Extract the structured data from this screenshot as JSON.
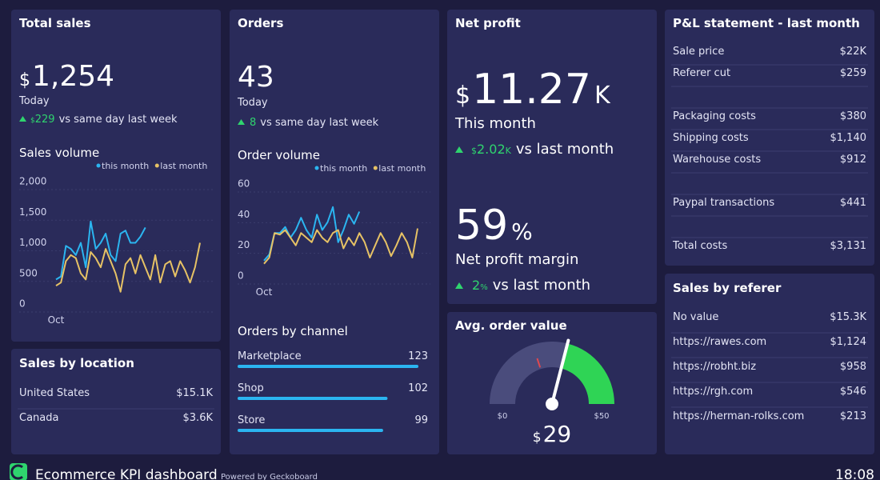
{
  "total_sales": {
    "title": "Total sales",
    "currency": "$",
    "value": "1,254",
    "period": "Today",
    "delta_currency": "$",
    "delta": "229",
    "delta_text": "vs same day last week",
    "chart": {
      "type": "line",
      "title": "Sales volume",
      "categories": [
        "Oct",
        null,
        null,
        null,
        null,
        null,
        null,
        null,
        null,
        null,
        null,
        null,
        null,
        null,
        null,
        null,
        null,
        null,
        null,
        null,
        null,
        null,
        null,
        null,
        null,
        null,
        null,
        null,
        null,
        null
      ],
      "series": [
        {
          "name": "this month",
          "color": "#2bb5f0",
          "values": [
            400,
            450,
            950,
            900,
            800,
            1000,
            600,
            1350,
            900,
            1000,
            1150,
            800,
            700,
            1150,
            1200,
            1000,
            1000,
            1100,
            1250,
            null,
            null,
            null,
            null,
            null,
            null,
            null,
            null,
            null,
            null,
            null
          ]
        },
        {
          "name": "last month",
          "color": "#e6c265",
          "values": [
            300,
            350,
            700,
            800,
            750,
            500,
            400,
            850,
            750,
            600,
            900,
            700,
            500,
            200,
            650,
            750,
            500,
            800,
            600,
            400,
            800,
            350,
            650,
            700,
            450,
            700,
            550,
            350,
            600,
            1000
          ]
        }
      ],
      "ylim": [
        0,
        2000
      ],
      "yticks": [
        0,
        500,
        {
          "value": 1000,
          "label": "1,000"
        },
        {
          "value": 1500,
          "label": "1,500"
        },
        {
          "value": 2000,
          "label": "2,000"
        }
      ],
      "grid": true
    }
  },
  "sales_by_location": {
    "title": "Sales by location",
    "rows": [
      [
        "United States",
        "$15.1K"
      ],
      [
        "Canada",
        "$3.6K"
      ]
    ]
  },
  "orders": {
    "title": "Orders",
    "value": "43",
    "period": "Today",
    "delta": "8",
    "delta_text": "vs same day last week",
    "chart": {
      "type": "line",
      "title": "Order volume",
      "categories": [
        "Oct",
        null,
        null,
        null,
        null,
        null,
        null,
        null,
        null,
        null,
        null,
        null,
        null,
        null,
        null,
        null,
        null,
        null,
        null,
        null,
        null,
        null,
        null,
        null,
        null,
        null,
        null,
        null,
        null,
        null
      ],
      "series": [
        {
          "name": "this month",
          "color": "#2bb5f0",
          "values": [
            10,
            14,
            28,
            28,
            32,
            25,
            30,
            38,
            30,
            25,
            40,
            30,
            35,
            45,
            22,
            30,
            40,
            34,
            42,
            null,
            null,
            null,
            null,
            null,
            null,
            null,
            null,
            null,
            null,
            null
          ]
        },
        {
          "name": "last month",
          "color": "#e6c265",
          "values": [
            8,
            12,
            28,
            27,
            30,
            25,
            20,
            28,
            25,
            22,
            30,
            25,
            22,
            28,
            30,
            18,
            25,
            20,
            28,
            22,
            12,
            20,
            28,
            22,
            13,
            20,
            28,
            22,
            12,
            31
          ]
        }
      ],
      "ylim": [
        0,
        60
      ],
      "yticks": [
        0,
        20,
        40,
        60
      ],
      "grid": true
    },
    "channels": {
      "type": "bar",
      "title": "Orders by channel",
      "categories": [
        "Marketplace",
        "Shop",
        "Store"
      ],
      "values": [
        123,
        102,
        99
      ],
      "color": "#2bb5f0"
    }
  },
  "net_profit": {
    "title": "Net profit",
    "currency": "$",
    "value": "11.27",
    "suffix": "K",
    "period": "This month",
    "delta_currency": "$",
    "delta": "2.02",
    "delta_suffix": "K",
    "delta_text": "vs last month",
    "margin": "59",
    "margin_unit": "%",
    "margin_label": "Net profit margin",
    "margin_delta": "2",
    "margin_delta_unit": "%",
    "margin_delta_text": "vs last month"
  },
  "avg_order_value": {
    "type": "gauge",
    "title": "Avg. order value",
    "currency": "$",
    "value": 29,
    "range": [
      0,
      50
    ],
    "ticks": [
      {
        "value": 0,
        "label": "$0"
      },
      {
        "value": 50,
        "label": "$50"
      }
    ],
    "marker": 20,
    "color": "#2fd455"
  },
  "pnl": {
    "title": "P&L statement - last month",
    "groups": [
      [
        [
          "Sale price",
          "$22K"
        ],
        [
          "Referer cut",
          "$259"
        ]
      ],
      [
        [
          "Packaging costs",
          "$380"
        ],
        [
          "Shipping costs",
          "$1,140"
        ],
        [
          "Warehouse costs",
          "$912"
        ]
      ],
      [
        [
          "Paypal transactions",
          "$441"
        ]
      ],
      [
        [
          "Total costs",
          "$3,131"
        ]
      ]
    ]
  },
  "referer": {
    "title": "Sales by referer",
    "rows": [
      [
        "No value",
        "$15.3K"
      ],
      [
        "https://rawes.com",
        "$1,124"
      ],
      [
        "https://robht.biz",
        "$958"
      ],
      [
        "https://rgh.com",
        "$546"
      ],
      [
        "https://herman-rolks.com",
        "$213"
      ]
    ]
  },
  "footer": {
    "title": "Ecommerce KPI dashboard",
    "powered_by": "Powered by Geckoboard",
    "time": "18:08"
  }
}
